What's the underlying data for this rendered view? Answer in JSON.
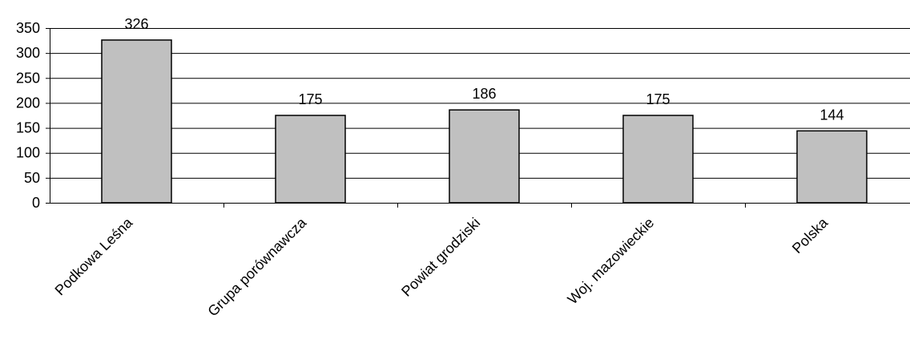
{
  "chart_data": {
    "type": "bar",
    "categories": [
      "Podkowa Leśna",
      "Grupa porównawcza",
      "Powiat grodziski",
      "Woj. mazowieckie",
      "Polska"
    ],
    "values": [
      326,
      175,
      186,
      175,
      144
    ],
    "data_labels": [
      "326",
      "175",
      "186",
      "175",
      "144"
    ],
    "title": "",
    "xlabel": "",
    "ylabel": "",
    "ylim": [
      0,
      350
    ],
    "yticks": [
      0,
      50,
      100,
      150,
      200,
      250,
      300,
      350
    ],
    "ytick_labels": [
      "0",
      "50",
      "100",
      "150",
      "200",
      "250",
      "300",
      "350"
    ],
    "grid": "horizontal",
    "legend": "none",
    "bar_color": "#c0c0c0",
    "bar_edge_color": "#000000",
    "grid_color": "#000000"
  }
}
